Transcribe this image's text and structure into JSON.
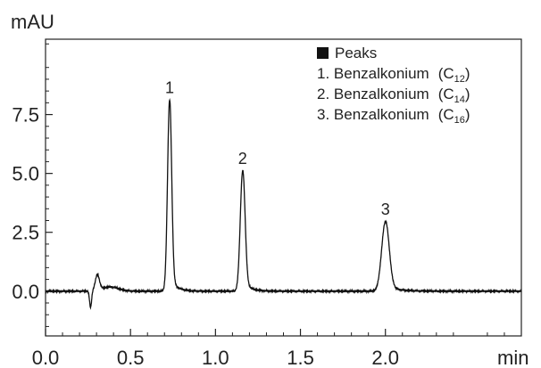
{
  "chart_data": {
    "type": "line",
    "xlabel": "min",
    "ylabel": "mAU",
    "xlim": [
      0.0,
      2.8
    ],
    "ylim": [
      -1.9,
      10.7
    ],
    "x_ticks": [
      "0.0",
      "0.5",
      "1.0",
      "1.5",
      "2.0"
    ],
    "x_tick_values": [
      0.0,
      0.5,
      1.0,
      1.5,
      2.0
    ],
    "y_ticks": [
      "0.0",
      "2.5",
      "5.0",
      "7.5"
    ],
    "y_tick_values": [
      0.0,
      2.5,
      5.0,
      7.5
    ],
    "grid": false,
    "legend_position": "top-right",
    "legend": {
      "title": "Peaks",
      "items": [
        {
          "number": "1",
          "text": "1. Benzalkonium",
          "subscript": "12"
        },
        {
          "number": "2",
          "text": "2. Benzalkonium",
          "subscript": "14"
        },
        {
          "number": "3",
          "text": "3. Benzalkonium",
          "subscript": "16"
        }
      ]
    },
    "baseline": 0.0,
    "injection_disturbance": {
      "x": 0.27,
      "min": -0.7,
      "max": 0.65
    },
    "peaks": [
      {
        "label": "1",
        "x": 0.73,
        "height": 8.1,
        "width": 0.012
      },
      {
        "label": "2",
        "x": 1.16,
        "height": 5.1,
        "width": 0.014
      },
      {
        "label": "3",
        "x": 2.0,
        "height": 2.95,
        "width": 0.022
      }
    ],
    "series_color": "#111111"
  }
}
